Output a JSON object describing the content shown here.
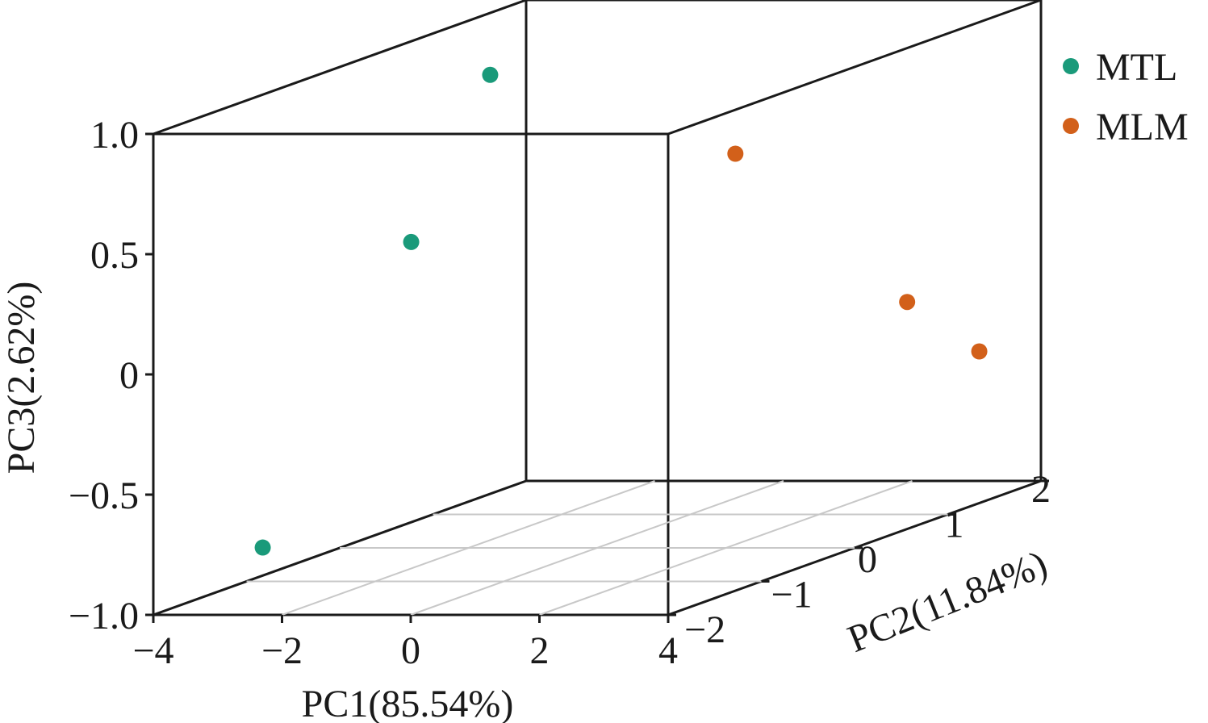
{
  "chart_data": {
    "type": "scatter",
    "dimensions": 3,
    "xlabel": "PC1(85.54%)",
    "ylabel": "PC2(11.84%)",
    "zlabel": "PC3(2.62%)",
    "xlim": [
      -4,
      4
    ],
    "ylim": [
      -2,
      2
    ],
    "zlim": [
      -1.0,
      1.0
    ],
    "x_ticks": [
      "−4",
      "−2",
      "0",
      "2",
      "4"
    ],
    "y_ticks": [
      "−2",
      "−1",
      "0",
      "1",
      "2"
    ],
    "z_ticks": [
      "−1.0",
      "−0.5",
      "0",
      "0.5",
      "1.0"
    ],
    "grid": "floor",
    "legend_position": "top-right",
    "series": [
      {
        "name": "MTL",
        "color": "#1a9a7a",
        "points": [
          {
            "x": -3.4,
            "y": 1.2,
            "z": 0.8
          },
          {
            "x": -2.6,
            "y": -0.2,
            "z": 0.3
          },
          {
            "x": -2.3,
            "y": -2.0,
            "z": -0.72
          }
        ]
      },
      {
        "name": "MLM",
        "color": "#d2601a",
        "points": [
          {
            "x": 0.7,
            "y": 1.0,
            "z": 0.5
          },
          {
            "x": 2.5,
            "y": 1.6,
            "z": -0.2
          },
          {
            "x": 4.2,
            "y": 1.2,
            "z": -0.35
          }
        ]
      }
    ]
  }
}
